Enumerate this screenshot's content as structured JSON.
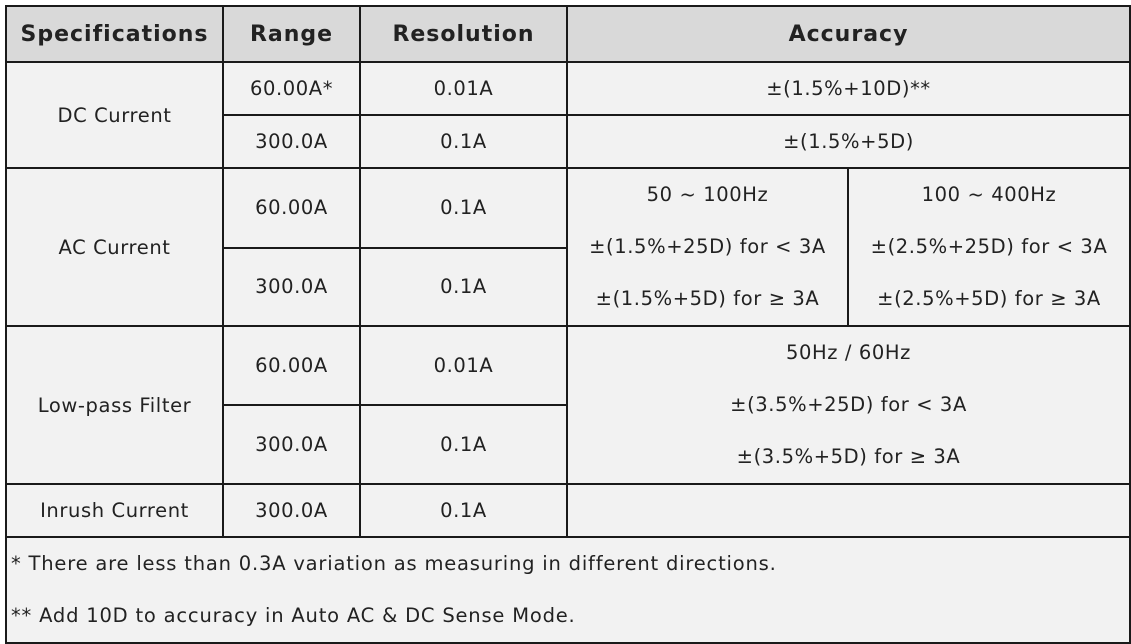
{
  "headers": [
    "Specifications",
    "Range",
    "Resolution",
    "Accuracy"
  ],
  "dc_current": {
    "label": "DC Current",
    "rows": [
      {
        "range": "60.00A*",
        "resolution": "0.01A",
        "accuracy": "±(1.5%+10D)**"
      },
      {
        "range": "300.0A",
        "resolution": "0.1A",
        "accuracy": "±(1.5%+5D)"
      }
    ]
  },
  "ac_current": {
    "label": "AC Current",
    "rows": [
      {
        "range": "60.00A",
        "resolution": "0.1A"
      },
      {
        "range": "300.0A",
        "resolution": "0.1A"
      }
    ],
    "band1": [
      "50 ~ 100Hz",
      "±(1.5%+25D) for < 3A",
      "±(1.5%+5D) for ≥ 3A"
    ],
    "band2": [
      "100 ~ 400Hz",
      "±(2.5%+25D) for < 3A",
      "±(2.5%+5D) for ≥ 3A"
    ]
  },
  "low_pass": {
    "label": "Low-pass Filter",
    "rows": [
      {
        "range": "60.00A",
        "resolution": "0.01A"
      },
      {
        "range": "300.0A",
        "resolution": "0.1A"
      }
    ],
    "accuracy": [
      "50Hz / 60Hz",
      "±(3.5%+25D) for < 3A",
      "±(3.5%+5D) for ≥ 3A"
    ]
  },
  "inrush": {
    "label": "Inrush Current",
    "range": "300.0A",
    "resolution": "0.1A",
    "accuracy": ""
  },
  "notes": [
    "* There are less than 0.3A variation as measuring in different directions.",
    "** Add 10D to accuracy in Auto AC & DC Sense Mode."
  ]
}
